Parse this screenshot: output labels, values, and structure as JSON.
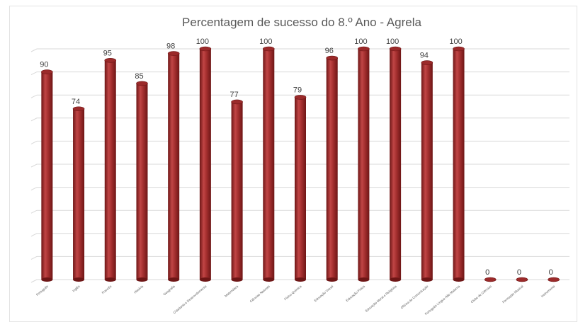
{
  "chart_data": {
    "type": "bar",
    "title": "Percentagem de sucesso  do 8.º Ano - Agrela",
    "categories": [
      "Português",
      "Inglês",
      "Francês",
      "História",
      "Geografia",
      "Cidadania e Desenvolvimento",
      "Matemática",
      "Ciências Naturais",
      "Físico-Química",
      "Educação Visual",
      "Educação Física",
      "Educação Moral e Religiosa",
      "Oficina de Comunicação",
      "Português Língua Não Materna",
      "Clube de Ciências",
      "Formação Musical",
      "Instrumento"
    ],
    "values": [
      90,
      74,
      95,
      85,
      98,
      100,
      77,
      100,
      79,
      96,
      100,
      100,
      94,
      100,
      0,
      0,
      0
    ],
    "ylim": [
      0,
      100
    ],
    "grid": true,
    "legend": "none",
    "bar_style": "cylinder",
    "colors": {
      "bar": "#9b2a2a",
      "bar_light": "#c04545",
      "bar_dark": "#6e1616",
      "grid": "#d9d9d9"
    }
  }
}
